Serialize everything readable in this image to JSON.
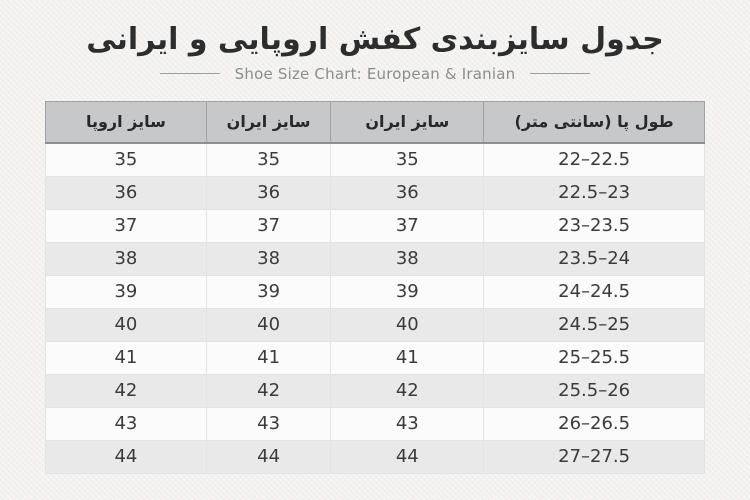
{
  "page": {
    "title": "جدول سایزبندی کفش اروپایی و ایرانی",
    "subtitle": "Shoe Size Chart: European & Iranian"
  },
  "chart_data": {
    "type": "table",
    "title": "جدول سایزبندی کفش اروپایی و ایرانی",
    "subtitle": "Shoe Size Chart: European & Iranian",
    "direction": "rtl",
    "columns": [
      {
        "key": "foot-length-cm",
        "label": "طول پا (سانتی متر)",
        "width": "33.5%"
      },
      {
        "key": "iran-size-1",
        "label": "سایز ایران",
        "width": "23.2%"
      },
      {
        "key": "iran-size-2",
        "label": "سایز ایران",
        "width": "18.9%"
      },
      {
        "key": "europe-size",
        "label": "سایز اروپا",
        "width": "24.4%"
      }
    ],
    "rows": [
      [
        "22–22.5",
        "35",
        "35",
        "35"
      ],
      [
        "22.5–23",
        "36",
        "36",
        "36"
      ],
      [
        "23–23.5",
        "37",
        "37",
        "37"
      ],
      [
        "23.5–24",
        "38",
        "38",
        "38"
      ],
      [
        "24–24.5",
        "39",
        "39",
        "39"
      ],
      [
        "24.5–25",
        "40",
        "40",
        "40"
      ],
      [
        "25–25.5",
        "41",
        "41",
        "41"
      ],
      [
        "25.5–26",
        "42",
        "42",
        "42"
      ],
      [
        "26–26.5",
        "43",
        "43",
        "43"
      ],
      [
        "27–27.5",
        "44",
        "44",
        "44"
      ]
    ]
  },
  "colors": {
    "bg": "#f2f1ef",
    "title": "#2d2d2d",
    "subtitle": "#8c8c8c",
    "rule": "#9e9e9e",
    "header_bg": "#c7c8ca",
    "header_text": "#26282b",
    "header_divider": "#a0a3a6",
    "header_underline": "#8f8f8f",
    "outer_border": "#b0b0b0",
    "cell_divider": "#e3e3e3",
    "row_light": "#fbfbfb",
    "row_dark": "#e9e9e9",
    "cell_text": "#3b3b3b"
  }
}
